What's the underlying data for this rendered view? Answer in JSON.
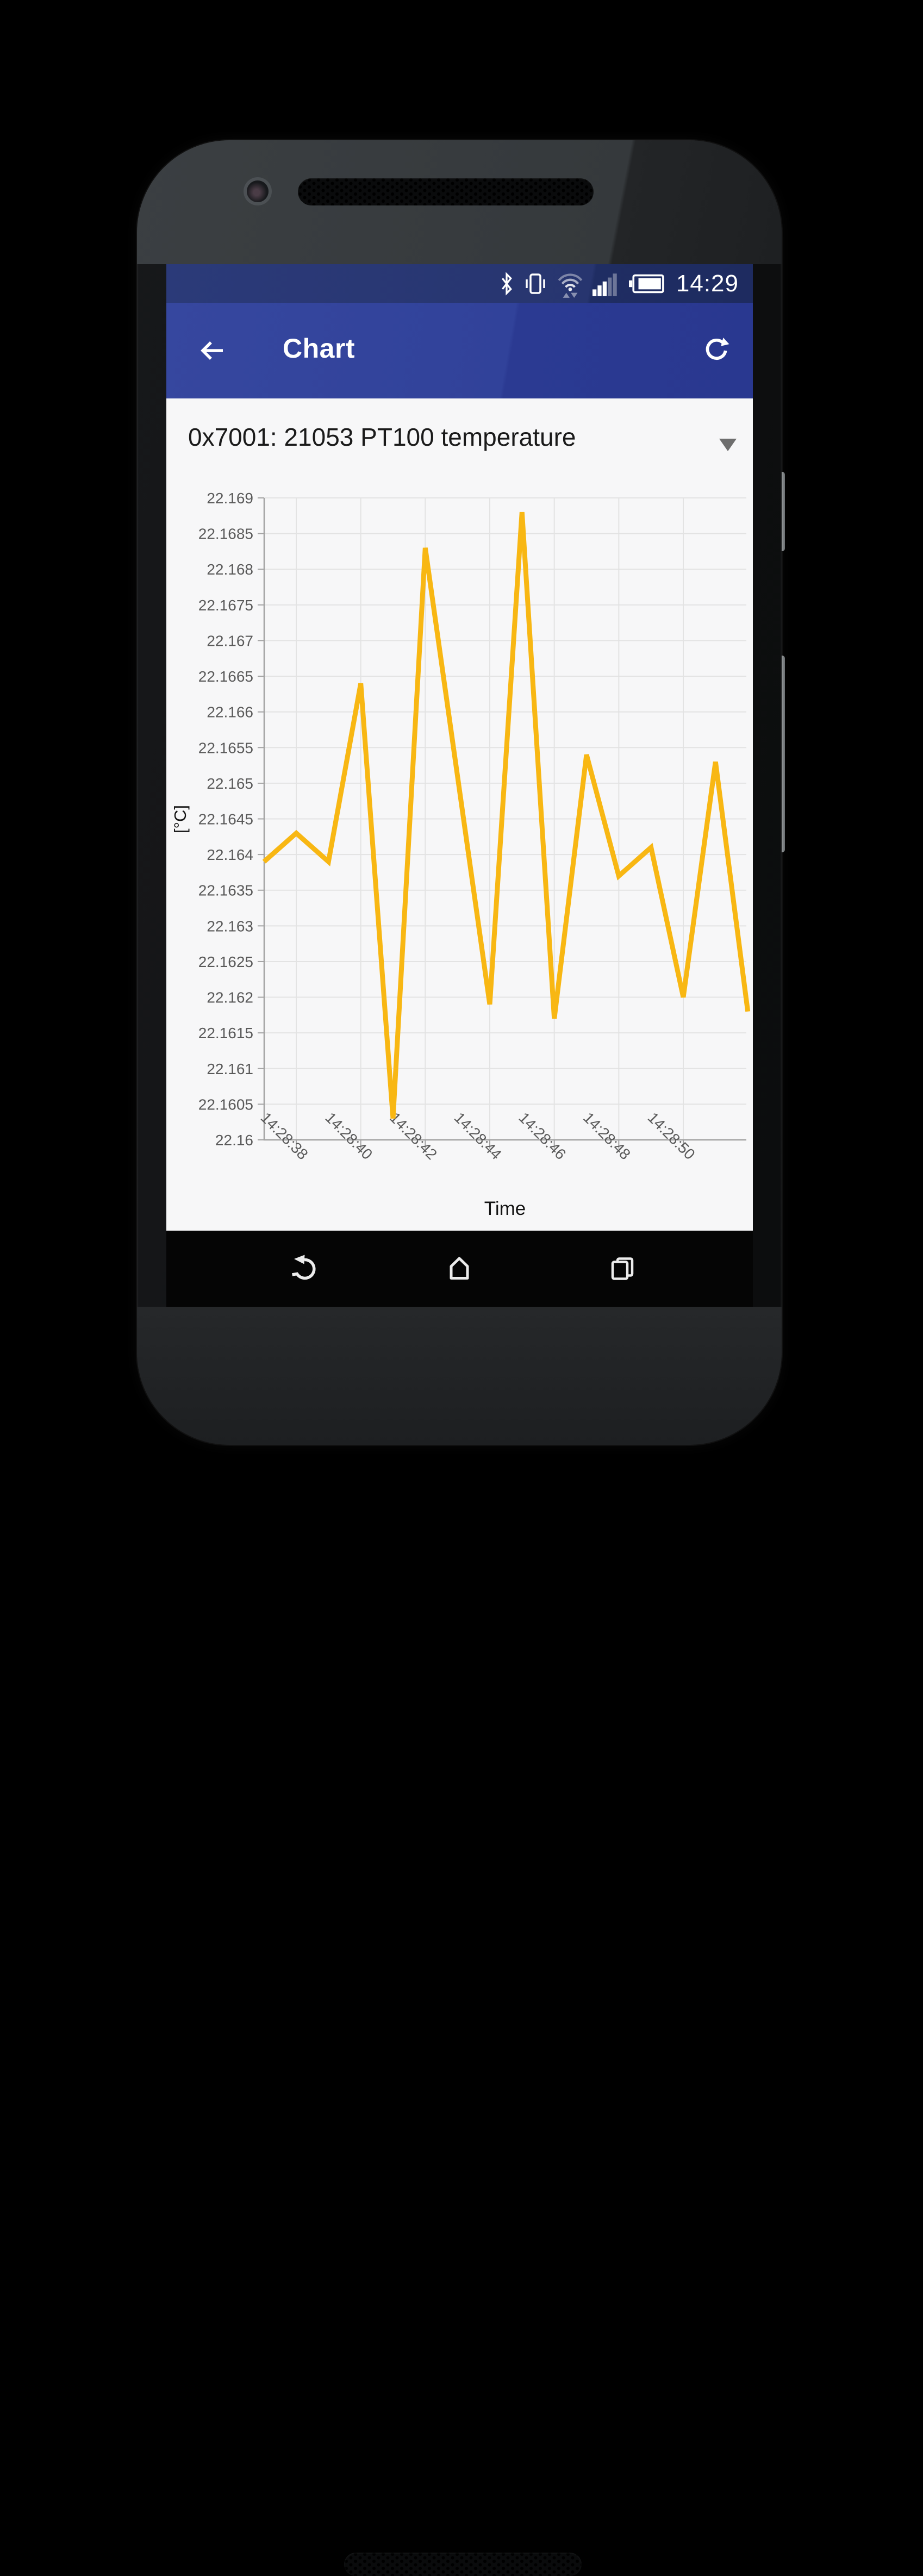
{
  "status_bar": {
    "time": "14:29",
    "icons": [
      "bluetooth-icon",
      "vibrate-icon",
      "wifi-data-icon",
      "signal-strength-icon",
      "battery-icon"
    ]
  },
  "app_bar": {
    "title": "Chart",
    "icons": [
      "back-arrow-icon",
      "refresh-icon"
    ]
  },
  "channel_selector": {
    "value": "0x7001: 21053 PT100 temperature",
    "caret_icon": "dropdown-caret-icon"
  },
  "chart_data": {
    "type": "line",
    "series_name": "0x7001: 21053 PT100 temperature",
    "xlabel": "Time",
    "ylabel": "[°C]",
    "ylim": [
      22.16,
      22.169
    ],
    "y_step": 0.0005,
    "y_tick_labels": [
      "22.169",
      "22.1685",
      "22.168",
      "22.1675",
      "22.167",
      "22.1665",
      "22.166",
      "22.1655",
      "22.165",
      "22.1645",
      "22.164",
      "22.1635",
      "22.163",
      "22.1625",
      "22.162",
      "22.1615",
      "22.161",
      "22.1605",
      "22.16"
    ],
    "x_ticks": [
      {
        "t": 38,
        "label": "14:28:38"
      },
      {
        "t": 40,
        "label": "14:28:40"
      },
      {
        "t": 42,
        "label": "14:28:42"
      },
      {
        "t": 44,
        "label": "14:28:44"
      },
      {
        "t": 46,
        "label": "14:28:46"
      },
      {
        "t": 48,
        "label": "14:28:48"
      },
      {
        "t": 50,
        "label": "14:28:50"
      }
    ],
    "x_range": [
      "14:28:37",
      "14:28:52"
    ],
    "grid": true,
    "legend": "none",
    "line_color": "#F8B713",
    "grid_color": "#E3E3E3",
    "axis_color": "#A3A3A3",
    "tick_label_color": "#5A5A5A",
    "points": [
      {
        "t": 37,
        "time": "14:28:37",
        "value": 22.1639
      },
      {
        "t": 38,
        "time": "14:28:38",
        "value": 22.1643
      },
      {
        "t": 39,
        "time": "14:28:39",
        "value": 22.1639
      },
      {
        "t": 40,
        "time": "14:28:40",
        "value": 22.1664
      },
      {
        "t": 41,
        "time": "14:28:41",
        "value": 22.1603
      },
      {
        "t": 42,
        "time": "14:28:42",
        "value": 22.1683
      },
      {
        "t": 44,
        "time": "14:28:44",
        "value": 22.1619
      },
      {
        "t": 45,
        "time": "14:28:45",
        "value": 22.1688
      },
      {
        "t": 46,
        "time": "14:28:46",
        "value": 22.1617
      },
      {
        "t": 47,
        "time": "14:28:47",
        "value": 22.1654
      },
      {
        "t": 48,
        "time": "14:28:48",
        "value": 22.1637
      },
      {
        "t": 49,
        "time": "14:28:49",
        "value": 22.1641
      },
      {
        "t": 50,
        "time": "14:28:50",
        "value": 22.162
      },
      {
        "t": 51,
        "time": "14:28:51",
        "value": 22.1653
      },
      {
        "t": 52,
        "time": "14:28:52",
        "value": 22.1618
      }
    ]
  },
  "nav_bar": {
    "icons": [
      "nav-back-icon",
      "nav-home-icon",
      "nav-recents-icon"
    ]
  }
}
